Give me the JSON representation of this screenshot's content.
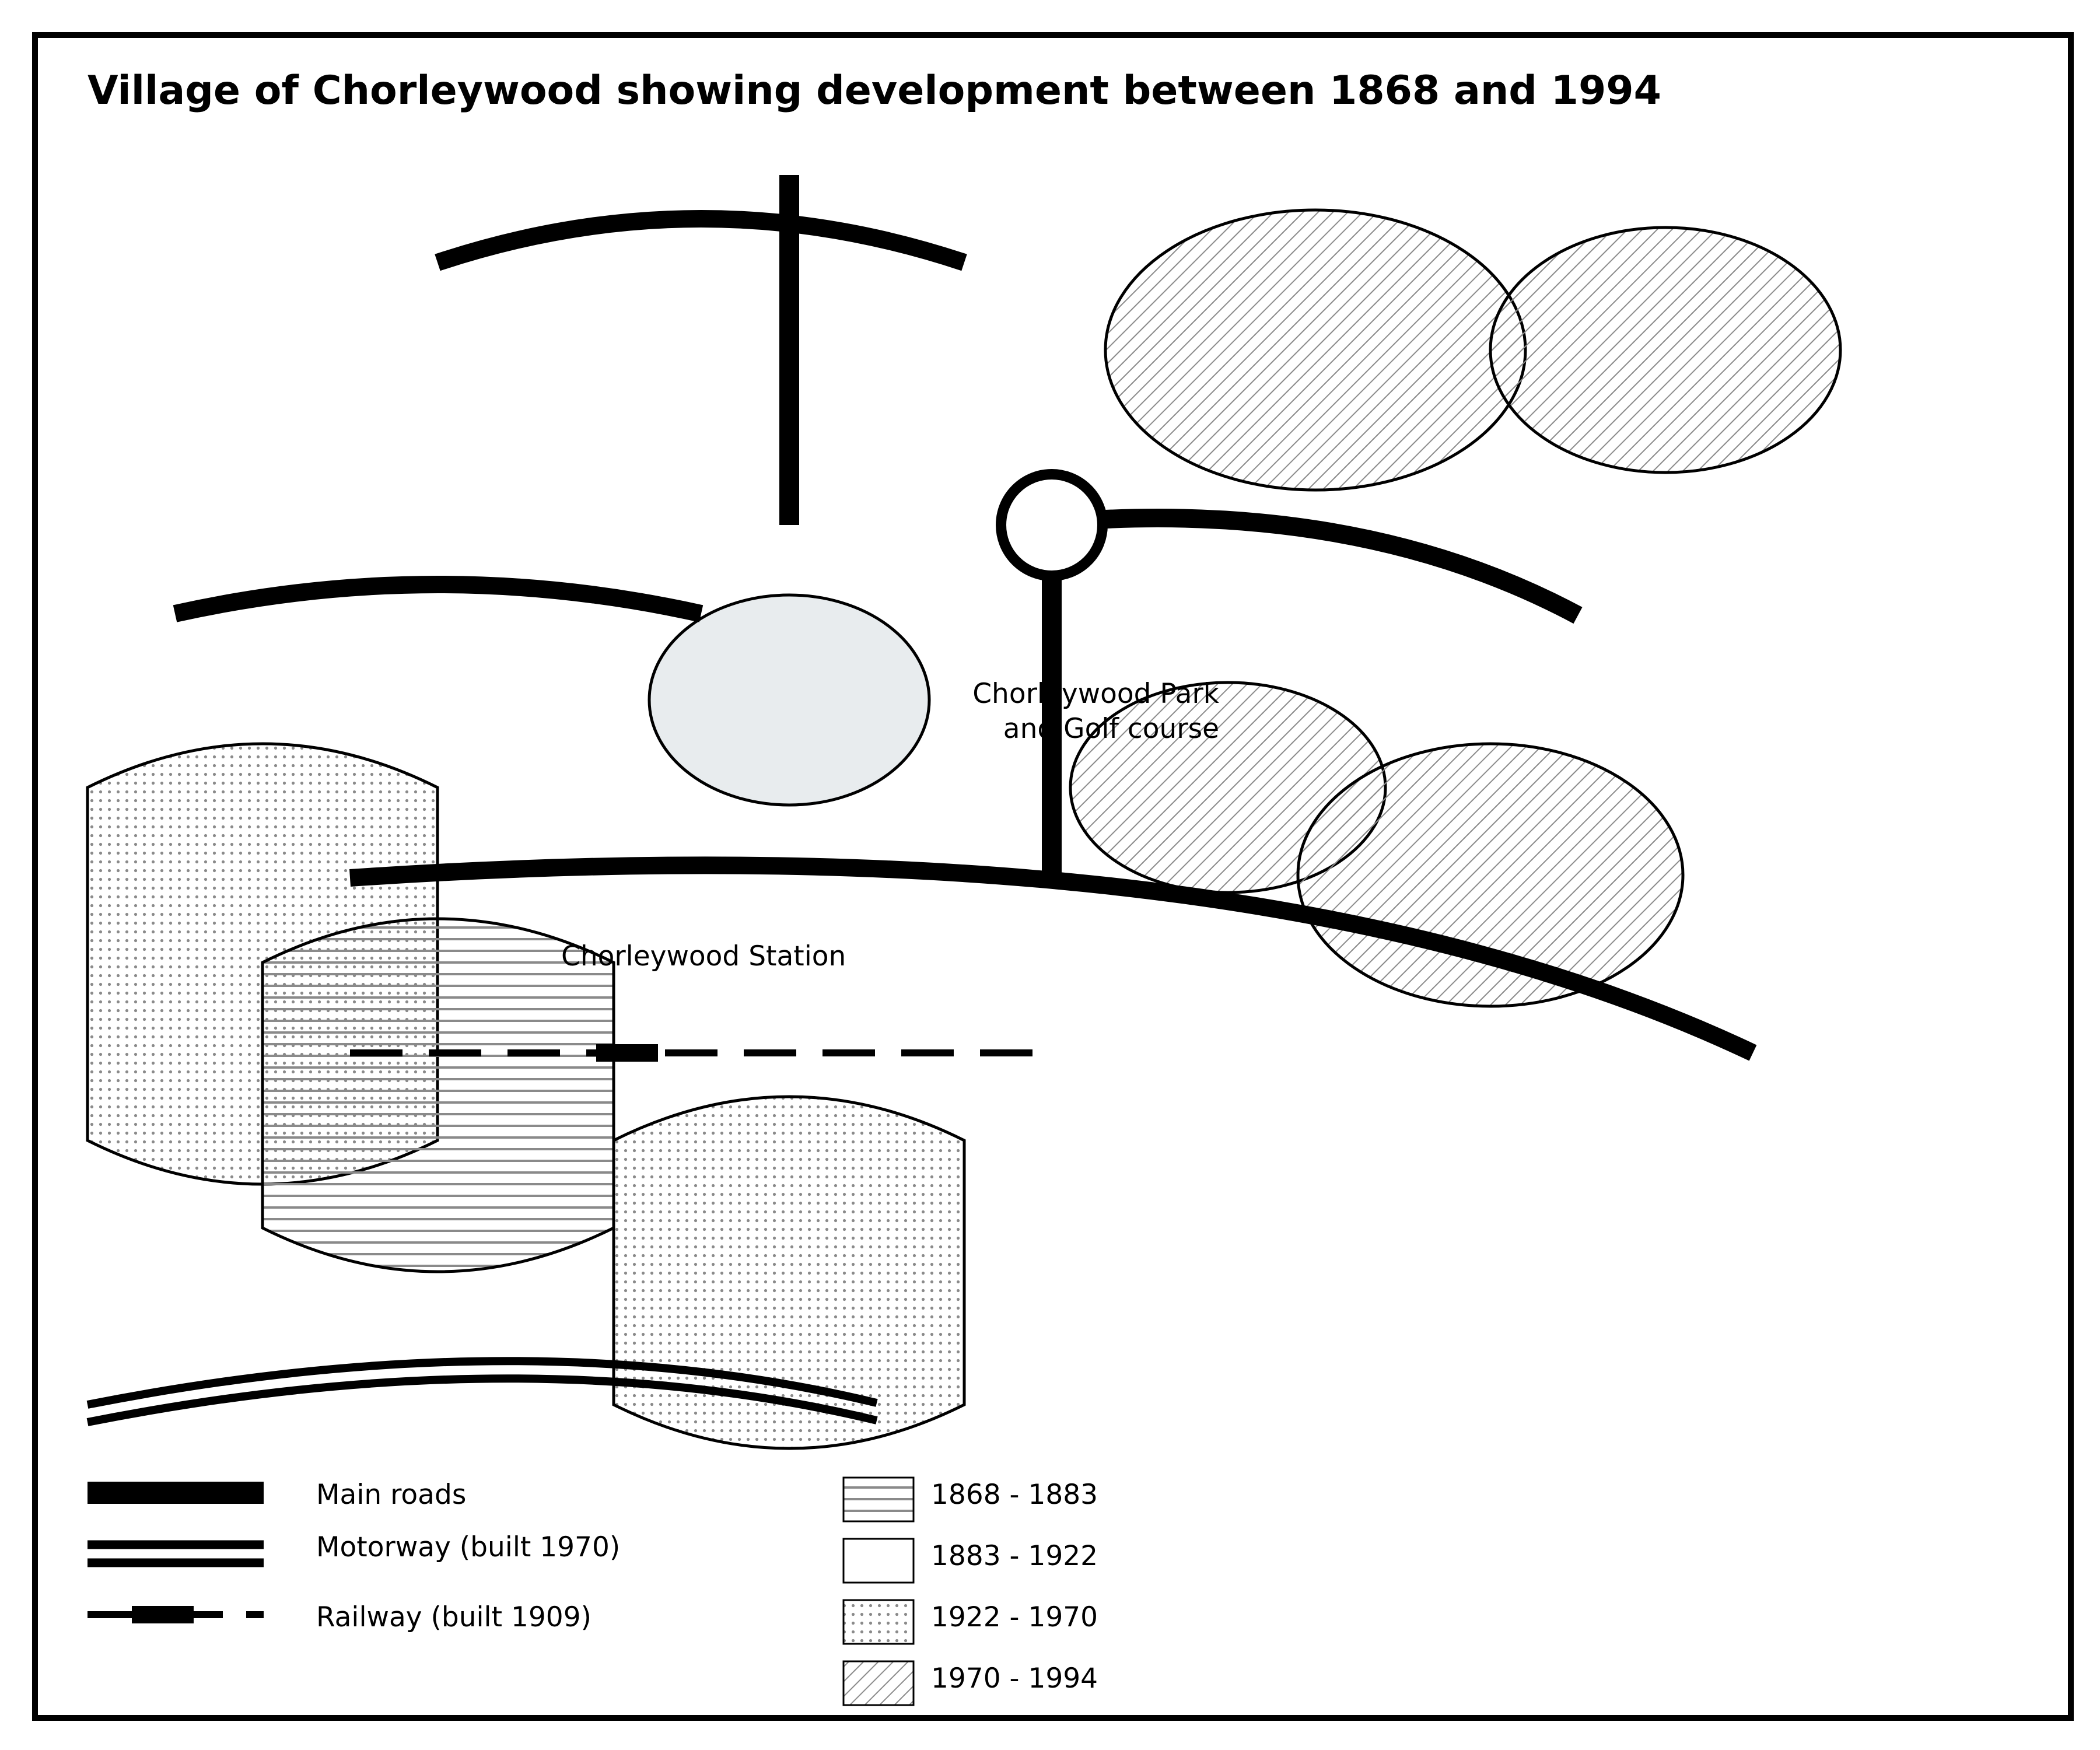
{
  "map": {
    "title": "Village of Chorleywood showing development between 1868 and 1994",
    "labels": {
      "park_line1": "Chorleywood Park",
      "park_line2": "and Golf course",
      "station": "Chorleywood Station"
    },
    "legend_lines": [
      {
        "id": "main-roads",
        "label": "Main roads"
      },
      {
        "id": "motorway",
        "label": "Motorway (built 1970)"
      },
      {
        "id": "railway",
        "label": "Railway (built 1909)"
      }
    ],
    "legend_periods": [
      {
        "id": "period-1868-1883",
        "label": "1868 - 1883",
        "pattern": "horizontal-lines"
      },
      {
        "id": "period-1883-1922",
        "label": "1883 - 1922",
        "pattern": "blank"
      },
      {
        "id": "period-1922-1970",
        "label": "1922 - 1970",
        "pattern": "dots"
      },
      {
        "id": "period-1970-1994",
        "label": "1970 - 1994",
        "pattern": "diagonal-hatch"
      }
    ],
    "colors": {
      "ink": "#000000",
      "park_fill": "#e8ecee",
      "pattern_gray": "#8a8a8a"
    }
  }
}
